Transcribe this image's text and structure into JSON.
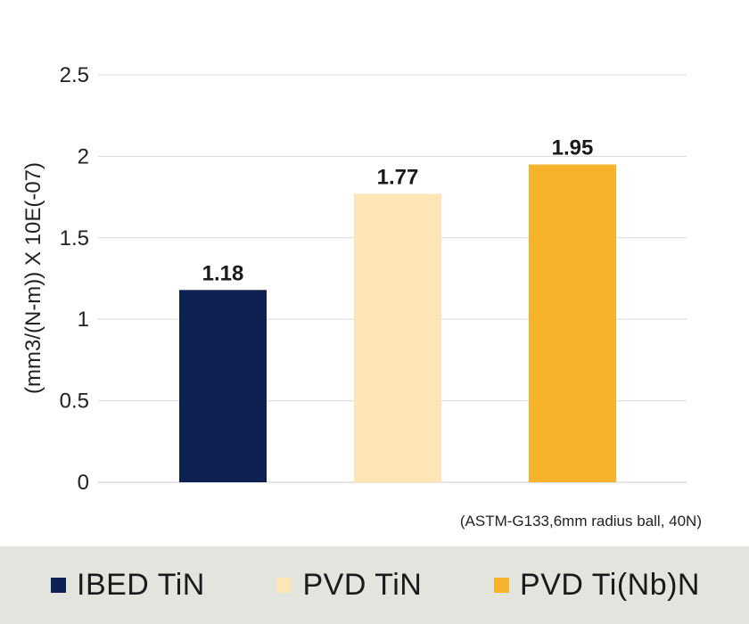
{
  "chart_data": {
    "type": "bar",
    "categories": [
      "IBED TiN",
      "PVD TiN",
      "PVD Ti(Nb)N"
    ],
    "values": [
      1.18,
      1.77,
      1.95
    ],
    "data_labels": [
      "1.18",
      "1.77",
      "1.95"
    ],
    "colors": [
      "#0f2150",
      "#fde5b5",
      "#f7b32b"
    ],
    "ylabel": "(mm3/(N-m)) X 10E(-07)",
    "xlabel": "",
    "ylim": [
      0,
      2.5
    ],
    "yticks": [
      0,
      0.5,
      1,
      1.5,
      2,
      2.5
    ],
    "ytick_labels": [
      "0",
      "0.5",
      "1",
      "1.5",
      "2",
      "2.5"
    ],
    "grid": true,
    "note": "(ASTM-G133,6mm radius ball, 40N)",
    "legend": {
      "placement": "bottom",
      "entries": [
        "IBED TiN",
        "PVD TiN",
        "PVD Ti(Nb)N"
      ]
    }
  }
}
